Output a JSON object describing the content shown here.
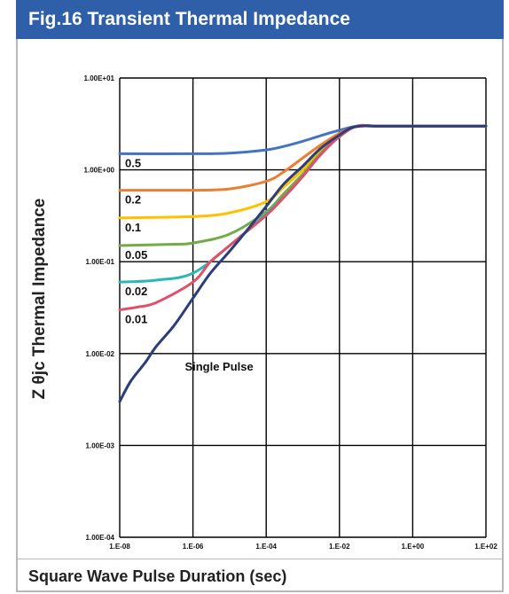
{
  "header": {
    "title": "Fig.16 Transient Thermal Impedance"
  },
  "chart_data": {
    "type": "line",
    "xlabel": "Square Wave Pulse Duration (sec)",
    "ylabel": "Z θjc Thermal Impedance",
    "x_scale": "log",
    "y_scale": "log",
    "xlim": [
      1e-08,
      100
    ],
    "ylim": [
      0.0001,
      10
    ],
    "x_ticks": [
      "1.E-08",
      "1.E-06",
      "1.E-04",
      "1.E-02",
      "1.E+00",
      "1.E+02"
    ],
    "y_ticks": [
      "1.00E-04",
      "1.00E-03",
      "1.00E-02",
      "1.00E-01",
      "1.00E+00",
      "1.00E+01"
    ],
    "grid": true,
    "series": [
      {
        "name": "0.5",
        "color": "#4472c4",
        "points": [
          [
            1e-08,
            1.5
          ],
          [
            1e-06,
            1.5
          ],
          [
            1e-05,
            1.52
          ],
          [
            0.0001,
            1.65
          ],
          [
            0.0003,
            1.8
          ],
          [
            0.001,
            2.05
          ],
          [
            0.003,
            2.35
          ],
          [
            0.01,
            2.7
          ],
          [
            0.03,
            3.0
          ],
          [
            0.1,
            3.0
          ],
          [
            1,
            3.0
          ],
          [
            100,
            3.0
          ]
        ]
      },
      {
        "name": "0.2",
        "color": "#ed7d31",
        "points": [
          [
            1e-08,
            0.6
          ],
          [
            1e-06,
            0.6
          ],
          [
            1e-05,
            0.62
          ],
          [
            0.0001,
            0.75
          ],
          [
            0.0003,
            0.95
          ],
          [
            0.001,
            1.35
          ],
          [
            0.003,
            1.85
          ],
          [
            0.01,
            2.5
          ],
          [
            0.03,
            3.0
          ],
          [
            0.1,
            3.0
          ],
          [
            1,
            3.0
          ],
          [
            100,
            3.0
          ]
        ]
      },
      {
        "name": "0.1",
        "color": "#ffc000",
        "points": [
          [
            1e-08,
            0.3
          ],
          [
            1e-06,
            0.31
          ],
          [
            1e-05,
            0.34
          ],
          [
            0.0001,
            0.45
          ],
          [
            0.0003,
            0.65
          ],
          [
            0.001,
            1.0
          ],
          [
            0.003,
            1.6
          ],
          [
            0.01,
            2.4
          ],
          [
            0.03,
            3.0
          ],
          [
            0.1,
            3.0
          ],
          [
            1,
            3.0
          ],
          [
            100,
            3.0
          ]
        ]
      },
      {
        "name": "0.05",
        "color": "#70ad47",
        "points": [
          [
            1e-08,
            0.15
          ],
          [
            3e-07,
            0.155
          ],
          [
            1e-06,
            0.16
          ],
          [
            1e-05,
            0.2
          ],
          [
            0.0001,
            0.35
          ],
          [
            0.0003,
            0.55
          ],
          [
            0.001,
            0.9
          ],
          [
            0.003,
            1.5
          ],
          [
            0.01,
            2.3
          ],
          [
            0.03,
            3.0
          ],
          [
            0.1,
            3.0
          ],
          [
            1,
            3.0
          ],
          [
            100,
            3.0
          ]
        ]
      },
      {
        "name": "0.02",
        "color": "#2ab7b7",
        "points": [
          [
            1e-08,
            0.06
          ],
          [
            1e-07,
            0.063
          ],
          [
            1e-06,
            0.075
          ],
          [
            1e-05,
            0.15
          ],
          [
            0.0001,
            0.33
          ],
          [
            0.0003,
            0.5
          ],
          [
            0.001,
            0.85
          ],
          [
            0.003,
            1.45
          ],
          [
            0.01,
            2.3
          ],
          [
            0.03,
            3.0
          ],
          [
            0.1,
            3.0
          ],
          [
            1,
            3.0
          ],
          [
            100,
            3.0
          ]
        ]
      },
      {
        "name": "0.01",
        "color": "#e0506a",
        "points": [
          [
            1e-08,
            0.03
          ],
          [
            3e-08,
            0.032
          ],
          [
            1e-07,
            0.036
          ],
          [
            1e-06,
            0.06
          ],
          [
            3e-06,
            0.1
          ],
          [
            1e-05,
            0.15
          ],
          [
            0.0001,
            0.32
          ],
          [
            0.0003,
            0.5
          ],
          [
            0.001,
            0.85
          ],
          [
            0.003,
            1.45
          ],
          [
            0.01,
            2.3
          ],
          [
            0.03,
            3.0
          ],
          [
            0.1,
            3.0
          ],
          [
            1,
            3.0
          ],
          [
            100,
            3.0
          ]
        ]
      },
      {
        "name": "Single Pulse",
        "color": "#2b3d7a",
        "points": [
          [
            1e-08,
            0.003
          ],
          [
            2e-08,
            0.005
          ],
          [
            5e-08,
            0.008
          ],
          [
            1e-07,
            0.012
          ],
          [
            3e-07,
            0.02
          ],
          [
            1e-06,
            0.04
          ],
          [
            3e-06,
            0.075
          ],
          [
            1e-05,
            0.13
          ],
          [
            3e-05,
            0.22
          ],
          [
            0.0001,
            0.4
          ],
          [
            0.0003,
            0.7
          ],
          [
            0.001,
            1.1
          ],
          [
            0.003,
            1.7
          ],
          [
            0.01,
            2.4
          ],
          [
            0.02,
            2.85
          ],
          [
            0.04,
            3.0
          ],
          [
            0.1,
            3.0
          ],
          [
            1,
            3.0
          ],
          [
            100,
            3.0
          ]
        ]
      }
    ],
    "annotations": [
      "0.5",
      "0.2",
      "0.1",
      "0.05",
      "0.02",
      "0.01",
      "Single Pulse"
    ]
  }
}
